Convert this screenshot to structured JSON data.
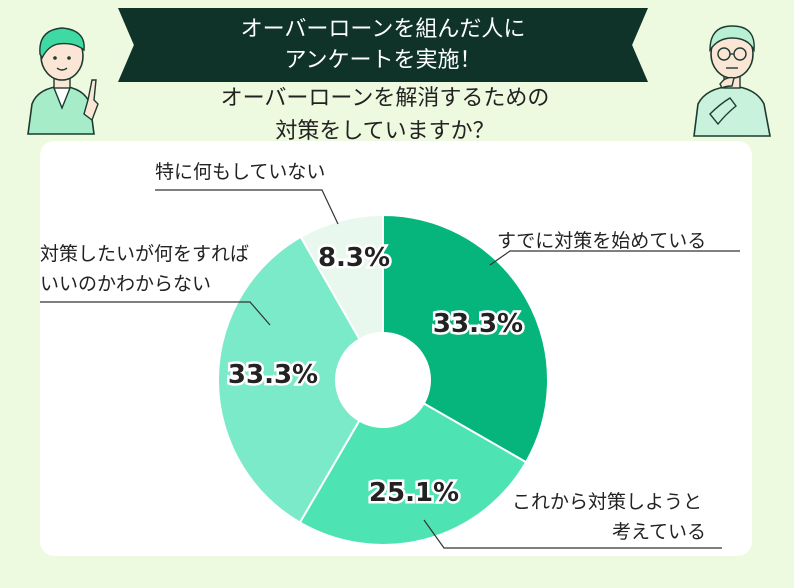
{
  "header": {
    "banner_line1": "オーバーローンを組んだ人に",
    "banner_line2": "アンケートを実施！",
    "question_line1": "オーバーローンを解消するための",
    "question_line2": "対策をしていますか？"
  },
  "chart_data": {
    "type": "pie",
    "donut": true,
    "slices": [
      {
        "label_lines": [
          "すでに対策を始めている"
        ],
        "value": 33.3,
        "value_label": "33.3%",
        "color": "#06b57c"
      },
      {
        "label_lines": [
          "これから対策しようと",
          "考えている"
        ],
        "value": 25.1,
        "value_label": "25.1%",
        "color": "#4ee3b3"
      },
      {
        "label_lines": [
          "対策したいが何をすれば",
          "いいのかわからない"
        ],
        "value": 33.3,
        "value_label": "33.3%",
        "color": "#7aeac8"
      },
      {
        "label_lines": [
          "特に何もしていない"
        ],
        "value": 8.3,
        "value_label": "8.3%",
        "color": "#e8f8ef"
      }
    ]
  },
  "colors": {
    "background": "#eefadf",
    "banner": "#0f3328",
    "card": "#ffffff"
  }
}
